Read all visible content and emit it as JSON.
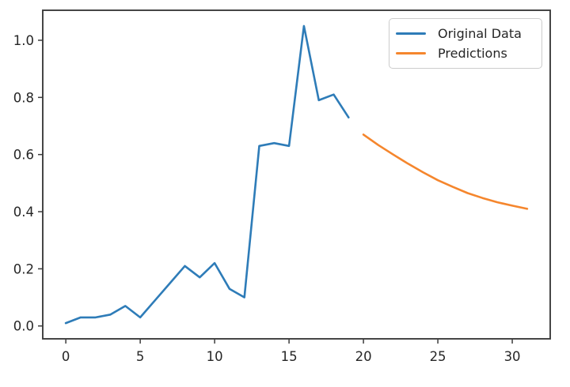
{
  "figure": {
    "background_color": "#ffffff",
    "spine_color": "#3c3c3c",
    "tick_color": "#3c3c3c",
    "tick_label_color": "#262626"
  },
  "legend": {
    "border_color": "#cccccc",
    "entries": [
      {
        "label": "Original Data",
        "color": "#2e7cb8"
      },
      {
        "label": "Predictions",
        "color": "#f5862d"
      }
    ]
  },
  "chart_data": {
    "type": "line",
    "title": "",
    "xlabel": "",
    "ylabel": "",
    "grid": false,
    "legend_position": "upper right",
    "xlim": [
      -1.55,
      32.55
    ],
    "ylim": [
      -0.045,
      1.105
    ],
    "x_ticks": [
      0,
      5,
      10,
      15,
      20,
      25,
      30
    ],
    "x_tick_labels": [
      "0",
      "5",
      "10",
      "15",
      "20",
      "25",
      "30"
    ],
    "y_ticks": [
      0.0,
      0.2,
      0.4,
      0.6,
      0.8,
      1.0
    ],
    "y_tick_labels": [
      "0.0",
      "0.2",
      "0.4",
      "0.6",
      "0.8",
      "1.0"
    ],
    "series": [
      {
        "name": "Original Data",
        "color": "#2e7cb8",
        "x": [
          0,
          1,
          2,
          3,
          4,
          5,
          6,
          7,
          8,
          9,
          10,
          11,
          12,
          13,
          14,
          15,
          16,
          17,
          18,
          19
        ],
        "y": [
          0.01,
          0.03,
          0.03,
          0.04,
          0.07,
          0.03,
          0.09,
          0.15,
          0.21,
          0.17,
          0.22,
          0.13,
          0.1,
          0.63,
          0.64,
          0.63,
          1.05,
          0.79,
          0.81,
          0.73
        ]
      },
      {
        "name": "Predictions",
        "color": "#f5862d",
        "x": [
          20,
          21,
          22,
          23,
          24,
          25,
          26,
          27,
          28,
          29,
          30,
          31
        ],
        "y": [
          0.67,
          0.633,
          0.6,
          0.568,
          0.538,
          0.51,
          0.487,
          0.465,
          0.448,
          0.433,
          0.421,
          0.41
        ]
      }
    ]
  }
}
